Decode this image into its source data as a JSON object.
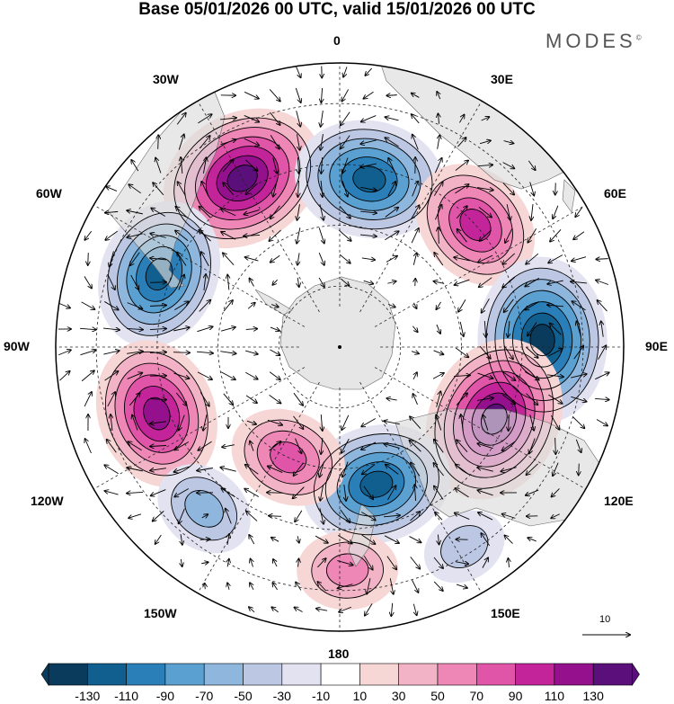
{
  "title": "Base 05/01/2026 00 UTC, valid 15/01/2026 00 UTC",
  "brand": "MODES",
  "brand_mark": "©",
  "longitude_labels": {
    "lon_0": "0",
    "lon_30e": "30E",
    "lon_60e": "60E",
    "lon_90e": "90E",
    "lon_120e": "120E",
    "lon_150e": "150E",
    "lon_180": "180",
    "lon_150w": "150W",
    "lon_120w": "120W",
    "lon_90w": "90W",
    "lon_60w": "60W",
    "lon_30w": "30W"
  },
  "vector_reference": "10",
  "colorbar": {
    "colors": [
      "#0b3b5c",
      "#115f8f",
      "#2a7fb9",
      "#5aa0d0",
      "#8fb6dd",
      "#bcc7e4",
      "#e2e2f0",
      "#ffffff",
      "#f7d6d6",
      "#f3b3c6",
      "#ee86b6",
      "#e055a8",
      "#c4249a",
      "#95108c",
      "#5a0f7a"
    ],
    "labels": [
      "-130",
      "-110",
      "-90",
      "-70",
      "-50",
      "-30",
      "-10",
      "10",
      "30",
      "50",
      "70",
      "90",
      "110",
      "130"
    ]
  },
  "anomaly_field": {
    "centers": [
      {
        "lon": -30,
        "lat": -42,
        "value": 130
      },
      {
        "lon": 10,
        "lat": -48,
        "value": -110
      },
      {
        "lon": 48,
        "lat": -45,
        "value": 90
      },
      {
        "lon": -68,
        "lat": -42,
        "value": -110
      },
      {
        "lon": 88,
        "lat": -40,
        "value": -130
      },
      {
        "lon": 115,
        "lat": -48,
        "value": 130
      },
      {
        "lon": -110,
        "lat": -42,
        "value": 110
      },
      {
        "lon": 165,
        "lat": -55,
        "value": -110
      },
      {
        "lon": -155,
        "lat": -60,
        "value": 70
      },
      {
        "lon": -140,
        "lat": -38,
        "value": -50
      },
      {
        "lon": 178,
        "lat": -35,
        "value": 50
      },
      {
        "lon": 148,
        "lat": -32,
        "value": -30
      }
    ]
  }
}
